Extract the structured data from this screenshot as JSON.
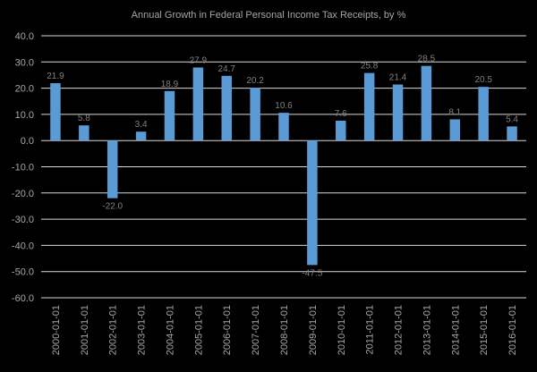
{
  "colors": {
    "background": "#000000",
    "bar": "#5b9bd5",
    "grid": "#d9d9d9",
    "text": "#a6a6a6",
    "label": "#808080"
  },
  "chart_data": {
    "type": "bar",
    "title": "Annual Growth in Federal Personal Income Tax Receipts, by %",
    "xlabel": "",
    "ylabel": "",
    "ylim": [
      -60,
      40
    ],
    "yticks": [
      "40.0",
      "30.0",
      "20.0",
      "10.0",
      "0.0",
      "-10.0",
      "-20.0",
      "-30.0",
      "-40.0",
      "-50.0",
      "-60.0"
    ],
    "grid": true,
    "legend": "none",
    "categories": [
      "2000-01-01",
      "2001-01-01",
      "2002-01-01",
      "2003-01-01",
      "2004-01-01",
      "2005-01-01",
      "2006-01-01",
      "2007-01-01",
      "2008-01-01",
      "2009-01-01",
      "2010-01-01",
      "2011-01-01",
      "2012-01-01",
      "2013-01-01",
      "2014-01-01",
      "2015-01-01",
      "2016-01-01"
    ],
    "values": [
      21.9,
      5.8,
      -22.0,
      3.4,
      18.9,
      27.9,
      24.7,
      20.2,
      10.6,
      -47.5,
      7.6,
      25.8,
      21.4,
      28.5,
      8.1,
      20.5,
      5.4
    ],
    "labels": [
      "21.9",
      "5.8",
      "-22.0",
      "3.4",
      "18.9",
      "27.9",
      "24.7",
      "20.2",
      "10.6",
      "-47.5",
      "7.6",
      "25.8",
      "21.4",
      "28.5",
      "8.1",
      "20.5",
      "5.4"
    ]
  }
}
